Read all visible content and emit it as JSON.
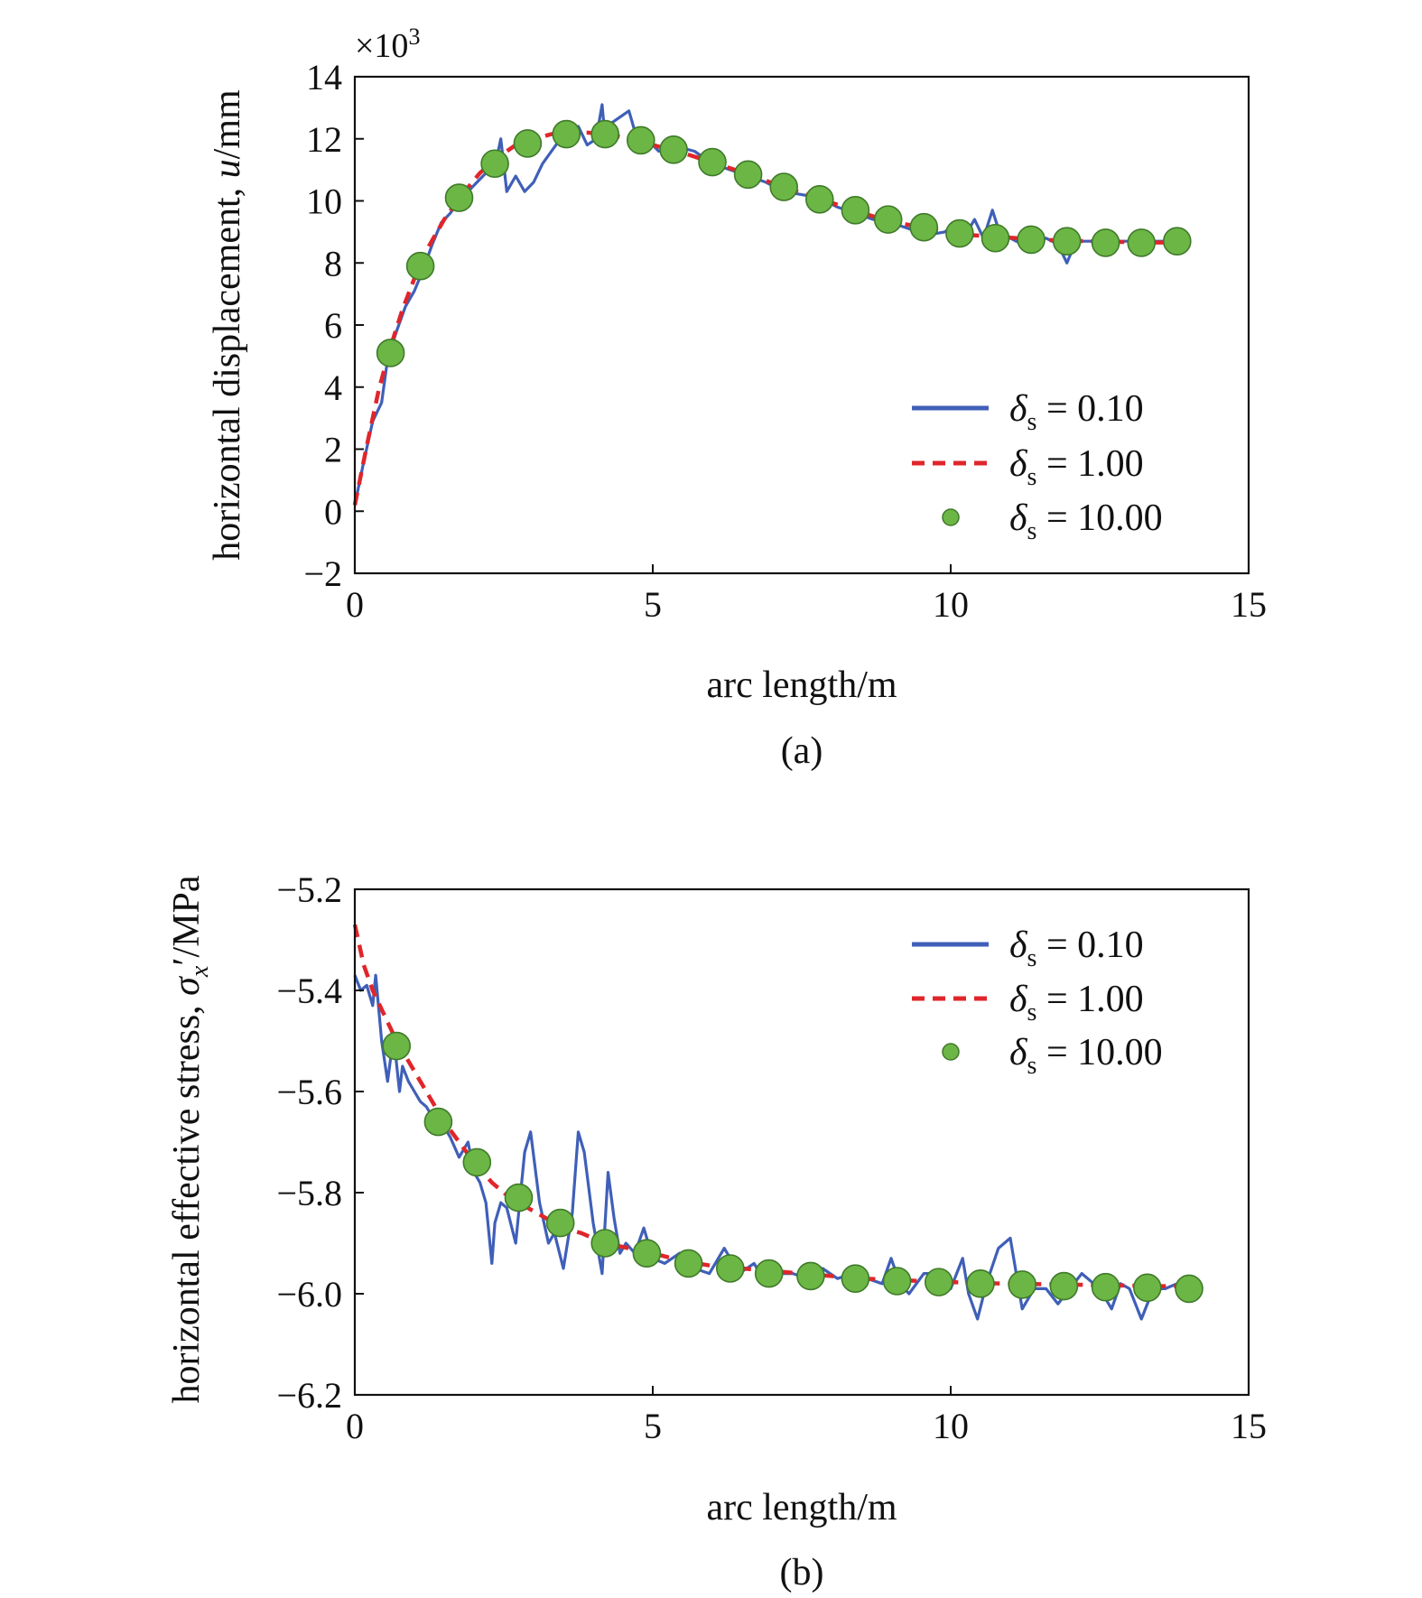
{
  "colors": {
    "series_0.10": "#3F5FB8",
    "series_1.00": "#E0262B",
    "series_10.00_fill": "#6CB645",
    "series_10.00_edge": "#3F7A2A",
    "axis": "#111111"
  },
  "chart_data": [
    {
      "type": "line",
      "caption": "(a)",
      "xlabel": "arc length/m",
      "ylabel_prefix": "horizontal displacement, ",
      "ylabel_symbol": "u",
      "ylabel_suffix": "/mm",
      "y_multiplier_base": "×10",
      "y_multiplier_exp": "3",
      "xlim": [
        0,
        15
      ],
      "ylim": [
        -2,
        14
      ],
      "xticks": [
        0,
        5,
        10,
        15
      ],
      "yticks": [
        -2,
        0,
        2,
        4,
        6,
        8,
        10,
        12,
        14
      ],
      "ytick_labels": [
        "−2",
        "0",
        "2",
        "4",
        "6",
        "8",
        "10",
        "12",
        "14"
      ],
      "xtick_labels": [
        "0",
        "5",
        "10",
        "15"
      ],
      "legend_position": "lower-right",
      "legend": [
        {
          "symbol": "δ",
          "sub": "s",
          "value": " = 0.10"
        },
        {
          "symbol": "δ",
          "sub": "s",
          "value": " = 1.00"
        },
        {
          "symbol": "δ",
          "sub": "s",
          "value": " = 10.00"
        }
      ],
      "series": [
        {
          "style": "solid",
          "x": [
            0,
            0.15,
            0.3,
            0.45,
            0.55,
            0.7,
            0.85,
            1.0,
            1.15,
            1.3,
            1.45,
            1.6,
            1.75,
            1.9,
            2.05,
            2.2,
            2.35,
            2.45,
            2.55,
            2.7,
            2.85,
            3.0,
            3.15,
            3.3,
            3.45,
            3.6,
            3.75,
            3.9,
            4.05,
            4.15,
            4.2,
            4.3,
            4.45,
            4.6,
            4.75,
            4.9,
            5.1,
            5.3,
            5.5,
            5.7,
            6.0,
            6.3,
            6.6,
            6.9,
            7.2,
            7.5,
            7.8,
            8.1,
            8.4,
            8.7,
            9.0,
            9.3,
            9.6,
            9.9,
            10.1,
            10.25,
            10.4,
            10.55,
            10.7,
            10.85,
            11.0,
            11.2,
            11.4,
            11.6,
            11.8,
            11.95,
            12.1,
            12.4,
            12.7,
            13.0,
            13.3,
            13.6,
            14.0
          ],
          "y": [
            0.2,
            1.6,
            2.9,
            3.5,
            4.9,
            5.8,
            6.6,
            7.1,
            7.8,
            8.6,
            9.3,
            9.6,
            10.0,
            10.3,
            10.6,
            10.9,
            11.1,
            12.0,
            10.3,
            10.8,
            10.3,
            10.6,
            11.2,
            11.6,
            12.0,
            11.8,
            12.4,
            11.8,
            12.0,
            13.1,
            12.0,
            12.5,
            12.7,
            12.9,
            11.9,
            12.0,
            11.6,
            11.7,
            11.7,
            11.6,
            11.2,
            11.0,
            10.8,
            10.6,
            10.3,
            10.2,
            10.1,
            9.8,
            9.6,
            9.4,
            9.3,
            9.1,
            8.9,
            9.0,
            9.3,
            8.9,
            9.4,
            8.8,
            9.7,
            8.8,
            8.8,
            8.6,
            8.7,
            8.8,
            8.6,
            8.0,
            8.7,
            8.7,
            8.7,
            8.7,
            8.7,
            8.7,
            8.8
          ]
        },
        {
          "style": "dashed",
          "x": [
            0,
            0.2,
            0.4,
            0.6,
            0.8,
            1.0,
            1.2,
            1.5,
            1.8,
            2.1,
            2.4,
            2.7,
            3.0,
            3.3,
            3.6,
            3.9,
            4.2,
            4.5,
            4.8,
            5.1,
            5.5,
            5.9,
            6.3,
            6.7,
            7.1,
            7.5,
            7.9,
            8.3,
            8.7,
            9.1,
            9.5,
            9.9,
            10.3,
            10.7,
            11.1,
            11.5,
            11.9,
            12.3,
            12.7,
            13.1,
            13.5,
            14.0
          ],
          "y": [
            0.2,
            2.1,
            3.9,
            5.3,
            6.5,
            7.5,
            8.4,
            9.4,
            10.2,
            10.9,
            11.4,
            11.8,
            12.0,
            12.15,
            12.2,
            12.2,
            12.15,
            12.05,
            11.9,
            11.75,
            11.55,
            11.3,
            11.05,
            10.8,
            10.5,
            10.25,
            10.0,
            9.75,
            9.5,
            9.3,
            9.15,
            9.0,
            8.9,
            8.85,
            8.8,
            8.75,
            8.72,
            8.7,
            8.68,
            8.67,
            8.66,
            8.66
          ]
        },
        {
          "style": "markers",
          "x": [
            0.6,
            1.1,
            1.75,
            2.35,
            2.9,
            3.55,
            4.2,
            4.8,
            5.35,
            6.0,
            6.6,
            7.2,
            7.8,
            8.4,
            8.95,
            9.55,
            10.15,
            10.75,
            11.35,
            11.95,
            12.6,
            13.2,
            13.8
          ],
          "y": [
            5.1,
            7.9,
            10.1,
            11.2,
            11.85,
            12.15,
            12.15,
            11.95,
            11.65,
            11.25,
            10.85,
            10.45,
            10.05,
            9.7,
            9.4,
            9.15,
            8.95,
            8.8,
            8.75,
            8.7,
            8.65,
            8.65,
            8.7
          ]
        }
      ]
    },
    {
      "type": "line",
      "caption": "(b)",
      "xlabel": "arc length/m",
      "ylabel_prefix": "horizontal effective stress, ",
      "ylabel_symbol": "σ",
      "ylabel_sub": "x",
      "ylabel_prime": "′",
      "ylabel_suffix": "/MPa",
      "xlim": [
        0,
        15
      ],
      "ylim": [
        -6.2,
        -5.2
      ],
      "xticks": [
        0,
        5,
        10,
        15
      ],
      "yticks": [
        -6.2,
        -6.0,
        -5.8,
        -5.6,
        -5.4,
        -5.2
      ],
      "ytick_labels": [
        "−6.2",
        "−6.0",
        "−5.8",
        "−5.6",
        "−5.4",
        "−5.2"
      ],
      "xtick_labels": [
        "0",
        "5",
        "10",
        "15"
      ],
      "legend_position": "upper-right",
      "legend": [
        {
          "symbol": "δ",
          "sub": "s",
          "value": " = 0.10"
        },
        {
          "symbol": "δ",
          "sub": "s",
          "value": " = 1.00"
        },
        {
          "symbol": "δ",
          "sub": "s",
          "value": " = 10.00"
        }
      ],
      "series": [
        {
          "style": "solid",
          "x": [
            0,
            0.1,
            0.2,
            0.3,
            0.35,
            0.45,
            0.55,
            0.65,
            0.75,
            0.8,
            0.9,
            1.0,
            1.1,
            1.2,
            1.3,
            1.45,
            1.6,
            1.75,
            1.9,
            2.0,
            2.1,
            2.2,
            2.3,
            2.35,
            2.45,
            2.55,
            2.7,
            2.85,
            2.95,
            3.1,
            3.25,
            3.35,
            3.5,
            3.65,
            3.75,
            3.85,
            4.0,
            4.15,
            4.25,
            4.35,
            4.45,
            4.55,
            4.7,
            4.85,
            5.0,
            5.2,
            5.45,
            5.7,
            5.95,
            6.2,
            6.45,
            6.7,
            6.9,
            7.1,
            7.35,
            7.6,
            7.85,
            8.1,
            8.35,
            8.6,
            8.85,
            9.0,
            9.15,
            9.3,
            9.55,
            9.8,
            10.0,
            10.2,
            10.3,
            10.45,
            10.6,
            10.8,
            11.0,
            11.2,
            11.4,
            11.6,
            11.8,
            12.0,
            12.2,
            12.4,
            12.55,
            12.7,
            12.85,
            13.0,
            13.2,
            13.4,
            13.6,
            13.8,
            14.0
          ],
          "y": [
            -5.37,
            -5.4,
            -5.39,
            -5.43,
            -5.37,
            -5.5,
            -5.58,
            -5.49,
            -5.6,
            -5.55,
            -5.58,
            -5.6,
            -5.62,
            -5.63,
            -5.65,
            -5.66,
            -5.69,
            -5.73,
            -5.7,
            -5.76,
            -5.78,
            -5.82,
            -5.94,
            -5.86,
            -5.82,
            -5.83,
            -5.9,
            -5.72,
            -5.68,
            -5.82,
            -5.9,
            -5.88,
            -5.95,
            -5.84,
            -5.68,
            -5.72,
            -5.86,
            -5.96,
            -5.76,
            -5.85,
            -5.92,
            -5.9,
            -5.92,
            -5.87,
            -5.93,
            -5.94,
            -5.92,
            -5.95,
            -5.96,
            -5.91,
            -5.96,
            -5.94,
            -5.98,
            -5.96,
            -5.96,
            -5.97,
            -5.95,
            -5.97,
            -5.96,
            -5.97,
            -5.98,
            -5.93,
            -5.98,
            -6.0,
            -5.96,
            -5.96,
            -5.99,
            -5.93,
            -6.0,
            -6.05,
            -5.98,
            -5.91,
            -5.89,
            -6.03,
            -5.99,
            -5.99,
            -6.02,
            -5.99,
            -5.96,
            -5.98,
            -6.0,
            -6.03,
            -5.98,
            -5.99,
            -6.05,
            -5.99,
            -5.99,
            -5.98,
            -5.98
          ]
        },
        {
          "style": "dashed",
          "x": [
            0,
            0.15,
            0.3,
            0.5,
            0.7,
            0.9,
            1.1,
            1.3,
            1.5,
            1.75,
            2.0,
            2.3,
            2.6,
            2.9,
            3.2,
            3.5,
            3.8,
            4.2,
            4.6,
            5.0,
            5.5,
            6.0,
            6.5,
            7.0,
            7.5,
            8.0,
            8.5,
            9.0,
            9.5,
            10.0,
            10.5,
            11.0,
            11.5,
            12.0,
            12.5,
            13.0,
            13.5,
            14.0
          ],
          "y": [
            -5.27,
            -5.35,
            -5.4,
            -5.45,
            -5.5,
            -5.54,
            -5.58,
            -5.62,
            -5.66,
            -5.7,
            -5.74,
            -5.78,
            -5.81,
            -5.83,
            -5.85,
            -5.87,
            -5.88,
            -5.9,
            -5.91,
            -5.92,
            -5.935,
            -5.945,
            -5.95,
            -5.955,
            -5.96,
            -5.965,
            -5.97,
            -5.972,
            -5.975,
            -5.977,
            -5.979,
            -5.98,
            -5.981,
            -5.982,
            -5.983,
            -5.984,
            -5.985,
            -5.985
          ]
        },
        {
          "style": "markers",
          "x": [
            0.7,
            1.4,
            2.05,
            2.75,
            3.45,
            4.2,
            4.9,
            5.6,
            6.3,
            6.95,
            7.65,
            8.4,
            9.1,
            9.8,
            10.5,
            11.2,
            11.9,
            12.6,
            13.3,
            14.0
          ],
          "y": [
            -5.51,
            -5.66,
            -5.74,
            -5.81,
            -5.86,
            -5.9,
            -5.92,
            -5.94,
            -5.95,
            -5.96,
            -5.965,
            -5.97,
            -5.975,
            -5.977,
            -5.98,
            -5.982,
            -5.985,
            -5.987,
            -5.988,
            -5.99
          ]
        }
      ]
    }
  ]
}
